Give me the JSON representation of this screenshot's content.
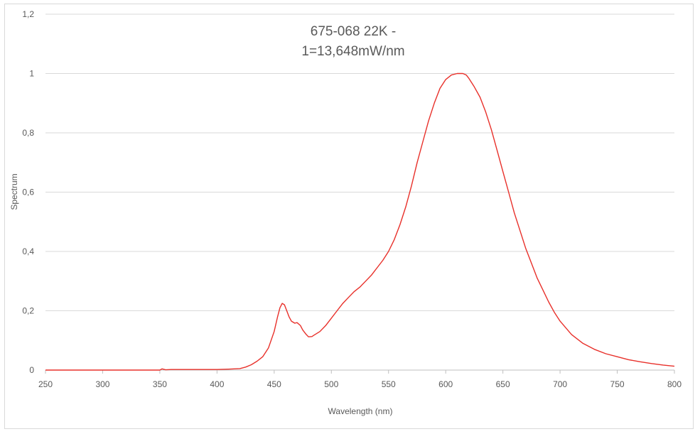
{
  "chart_data": {
    "type": "line",
    "title": "675-068 22K -",
    "subtitle": "1=13,648mW/nm",
    "xlabel": "Wavelength (nm)",
    "ylabel": "Spectrum",
    "xlim": [
      250,
      800
    ],
    "ylim": [
      0,
      1.2
    ],
    "x_ticks": [
      "250",
      "300",
      "350",
      "400",
      "450",
      "500",
      "550",
      "600",
      "650",
      "700",
      "750",
      "800"
    ],
    "y_ticks": [
      "0",
      "0,2",
      "0,4",
      "0,6",
      "0,8",
      "1",
      "1,2"
    ],
    "grid": "horizontal",
    "legend": "none",
    "series": [
      {
        "color": "#e8302a",
        "x": [
          250,
          300,
          350,
          352,
          355,
          360,
          400,
          410,
          420,
          425,
          430,
          435,
          440,
          445,
          450,
          453,
          455,
          457,
          459,
          461,
          463,
          465,
          468,
          470,
          473,
          475,
          478,
          480,
          483,
          485,
          490,
          495,
          500,
          505,
          510,
          515,
          520,
          525,
          530,
          535,
          540,
          545,
          550,
          555,
          560,
          565,
          570,
          575,
          580,
          585,
          590,
          595,
          600,
          605,
          610,
          615,
          618,
          620,
          625,
          630,
          635,
          640,
          645,
          650,
          655,
          660,
          665,
          670,
          675,
          680,
          685,
          690,
          695,
          700,
          710,
          720,
          730,
          740,
          750,
          760,
          770,
          780,
          790,
          800
        ],
        "y": [
          0,
          0,
          0,
          0.004,
          0.001,
          0.002,
          0.002,
          0.003,
          0.005,
          0.01,
          0.018,
          0.03,
          0.045,
          0.075,
          0.13,
          0.18,
          0.21,
          0.225,
          0.22,
          0.2,
          0.18,
          0.165,
          0.158,
          0.16,
          0.15,
          0.135,
          0.12,
          0.112,
          0.113,
          0.118,
          0.13,
          0.15,
          0.175,
          0.2,
          0.225,
          0.245,
          0.265,
          0.28,
          0.3,
          0.32,
          0.345,
          0.37,
          0.4,
          0.44,
          0.49,
          0.55,
          0.62,
          0.7,
          0.77,
          0.84,
          0.9,
          0.95,
          0.98,
          0.995,
          1.0,
          1.0,
          0.995,
          0.985,
          0.955,
          0.92,
          0.87,
          0.81,
          0.74,
          0.67,
          0.6,
          0.53,
          0.47,
          0.41,
          0.36,
          0.31,
          0.27,
          0.23,
          0.195,
          0.165,
          0.12,
          0.09,
          0.07,
          0.055,
          0.045,
          0.035,
          0.028,
          0.022,
          0.017,
          0.013
        ]
      }
    ]
  }
}
